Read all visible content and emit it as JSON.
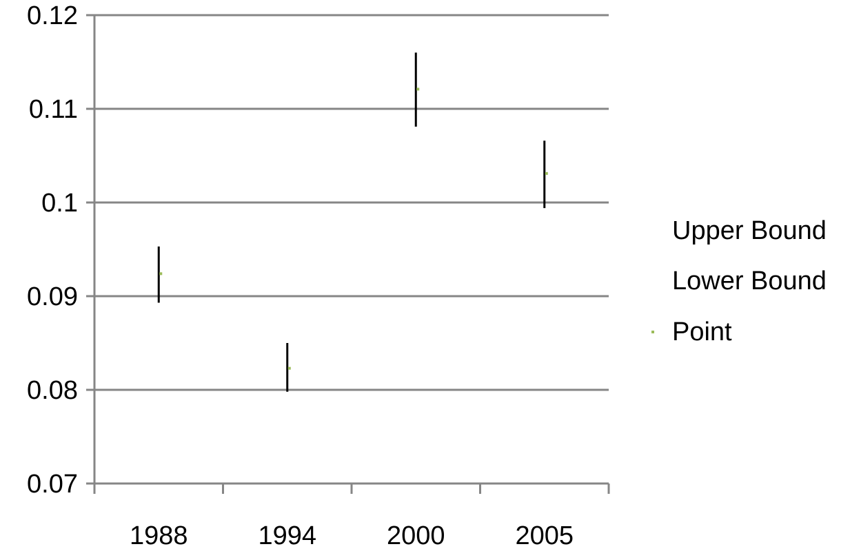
{
  "chart_data": {
    "type": "stock",
    "categories": [
      "1988",
      "1994",
      "2000",
      "2005"
    ],
    "series": [
      {
        "name": "Upper Bound",
        "values": [
          0.0953,
          0.085,
          0.116,
          0.1066
        ]
      },
      {
        "name": "Lower Bound",
        "values": [
          0.0893,
          0.0798,
          0.1081,
          0.0994
        ]
      },
      {
        "name": "Point",
        "values": [
          0.0924,
          0.0823,
          0.1121,
          0.1031
        ]
      }
    ],
    "y_ticks": [
      "0.07",
      "0.08",
      "0.09",
      "0.1",
      "0.11",
      "0.12"
    ],
    "ylim": [
      0.07,
      0.12
    ],
    "grid": "horizontal",
    "legend_position": "right",
    "colors": {
      "range_line": "#000000",
      "point_marker": "#9BBB59",
      "gridline": "#868686",
      "axis": "#868686"
    }
  }
}
